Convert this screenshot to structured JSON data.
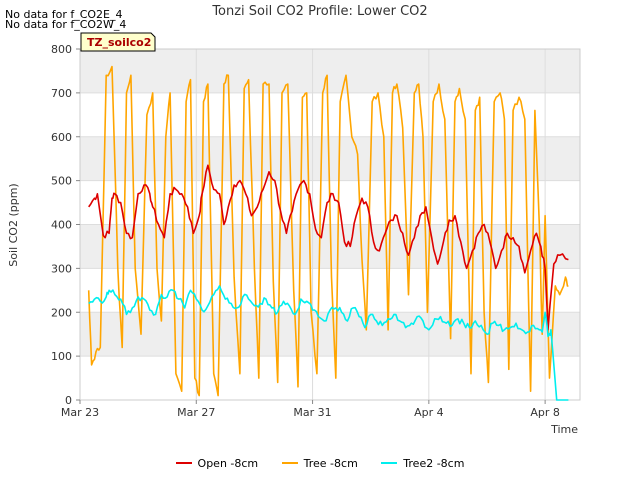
{
  "chart_data": {
    "type": "line",
    "title": "Tonzi Soil CO2 Profile: Lower CO2",
    "xlabel": "Time",
    "ylabel": "Soil CO2 (ppm)",
    "ylim": [
      0,
      800
    ],
    "yticks": [
      0,
      100,
      200,
      300,
      400,
      500,
      600,
      700,
      800
    ],
    "xlim_days": [
      0,
      17.2
    ],
    "xticks": [
      {
        "label": "Mar 23",
        "day": 0
      },
      {
        "label": "Mar 27",
        "day": 4
      },
      {
        "label": "Mar 31",
        "day": 8
      },
      {
        "label": "Apr 4",
        "day": 12
      },
      {
        "label": "Apr 8",
        "day": 16
      }
    ],
    "annotation_label": "TZ_soilco2",
    "messages": [
      "No data for f_CO2E_4",
      "No data for f_CO2W_4"
    ],
    "grid": true,
    "banded_background": true,
    "series": [
      {
        "name": "Open -8cm",
        "color": "#dd0000",
        "x": [
          0.3,
          0.5,
          0.6,
          0.8,
          1.0,
          1.1,
          1.2,
          1.4,
          1.6,
          1.8,
          2.0,
          2.2,
          2.4,
          2.5,
          2.7,
          2.9,
          3.1,
          3.3,
          3.5,
          3.7,
          3.9,
          4.1,
          4.2,
          4.4,
          4.6,
          4.8,
          4.95,
          5.1,
          5.3,
          5.5,
          5.7,
          5.9,
          6.1,
          6.3,
          6.5,
          6.7,
          6.9,
          7.1,
          7.3,
          7.5,
          7.7,
          7.9,
          8.1,
          8.3,
          8.5,
          8.7,
          8.9,
          9.1,
          9.3,
          9.5,
          9.7,
          9.9,
          10.1,
          10.3,
          10.5,
          10.7,
          10.9,
          11.1,
          11.3,
          11.5,
          11.7,
          11.9,
          12.1,
          12.3,
          12.5,
          12.7,
          12.9,
          13.1,
          13.3,
          13.5,
          13.7,
          13.9,
          14.1,
          14.3,
          14.5,
          14.7,
          14.9,
          15.1,
          15.3,
          15.5,
          15.7,
          15.85,
          16.0,
          16.1,
          16.3,
          16.5,
          16.8
        ],
        "y": [
          440,
          460,
          470,
          375,
          380,
          460,
          470,
          450,
          380,
          370,
          470,
          490,
          470,
          440,
          400,
          370,
          470,
          480,
          470,
          440,
          380,
          420,
          470,
          535,
          480,
          470,
          400,
          440,
          490,
          500,
          470,
          420,
          440,
          480,
          520,
          500,
          430,
          380,
          430,
          480,
          500,
          470,
          390,
          370,
          450,
          470,
          450,
          360,
          350,
          420,
          460,
          440,
          360,
          340,
          380,
          410,
          420,
          380,
          330,
          370,
          420,
          440,
          370,
          310,
          360,
          410,
          420,
          360,
          300,
          340,
          380,
          400,
          360,
          300,
          340,
          380,
          370,
          350,
          290,
          340,
          380,
          350,
          300,
          160,
          310,
          330,
          320
        ],
        "band": 0
      },
      {
        "name": "Tree -8cm",
        "color": "#ffa500",
        "x": [
          0.3,
          0.4,
          0.55,
          0.7,
          0.9,
          1.1,
          1.3,
          1.45,
          1.6,
          1.75,
          1.9,
          2.1,
          2.3,
          2.5,
          2.65,
          2.8,
          2.95,
          3.1,
          3.3,
          3.5,
          3.65,
          3.8,
          3.95,
          4.1,
          4.25,
          4.4,
          4.6,
          4.75,
          4.95,
          5.1,
          5.3,
          5.5,
          5.65,
          5.8,
          6.0,
          6.15,
          6.3,
          6.5,
          6.65,
          6.8,
          6.95,
          7.15,
          7.35,
          7.5,
          7.65,
          7.8,
          7.95,
          8.15,
          8.35,
          8.5,
          8.65,
          8.8,
          8.95,
          9.15,
          9.35,
          9.55,
          9.7,
          9.85,
          10.05,
          10.25,
          10.45,
          10.6,
          10.75,
          10.9,
          11.1,
          11.3,
          11.5,
          11.65,
          11.8,
          11.95,
          12.15,
          12.35,
          12.55,
          12.75,
          12.9,
          13.05,
          13.25,
          13.45,
          13.6,
          13.75,
          13.9,
          14.05,
          14.25,
          14.45,
          14.6,
          14.75,
          14.9,
          15.1,
          15.3,
          15.5,
          15.65,
          15.8,
          15.9,
          16.0,
          16.15,
          16.35,
          16.5,
          16.7,
          16.8
        ],
        "y": [
          250,
          80,
          110,
          120,
          740,
          760,
          300,
          120,
          700,
          740,
          300,
          150,
          650,
          700,
          300,
          180,
          600,
          700,
          60,
          20,
          680,
          730,
          50,
          10,
          680,
          720,
          60,
          10,
          720,
          740,
          280,
          60,
          710,
          730,
          300,
          50,
          720,
          720,
          270,
          40,
          700,
          720,
          250,
          30,
          690,
          700,
          200,
          60,
          700,
          740,
          280,
          50,
          680,
          740,
          600,
          560,
          320,
          160,
          680,
          700,
          600,
          160,
          700,
          720,
          620,
          240,
          700,
          720,
          600,
          200,
          680,
          720,
          640,
          140,
          680,
          710,
          640,
          60,
          660,
          690,
          200,
          40,
          680,
          700,
          640,
          70,
          660,
          690,
          640,
          20,
          660,
          400,
          150,
          420,
          50,
          260,
          240,
          280,
          260
        ],
        "band": 0
      },
      {
        "name": "Tree2 -8cm",
        "color": "#00eeee",
        "x": [
          0.3,
          0.5,
          0.7,
          0.9,
          1.0,
          1.2,
          1.4,
          1.6,
          1.8,
          2.0,
          2.2,
          2.4,
          2.6,
          2.8,
          3.0,
          3.2,
          3.4,
          3.6,
          3.8,
          4.0,
          4.2,
          4.4,
          4.6,
          4.8,
          5.0,
          5.2,
          5.4,
          5.6,
          5.8,
          6.0,
          6.2,
          6.4,
          6.6,
          6.8,
          7.0,
          7.2,
          7.4,
          7.6,
          7.8,
          8.0,
          8.2,
          8.4,
          8.6,
          8.8,
          9.0,
          9.2,
          9.4,
          9.6,
          9.8,
          10.0,
          10.2,
          10.4,
          10.6,
          10.8,
          11.0,
          11.2,
          11.4,
          11.6,
          11.8,
          12.0,
          12.2,
          12.4,
          12.6,
          12.8,
          13.0,
          13.2,
          13.4,
          13.6,
          13.8,
          14.0,
          14.2,
          14.4,
          14.6,
          14.8,
          15.0,
          15.2,
          15.4,
          15.6,
          15.8,
          15.9,
          16.0,
          16.1,
          16.2,
          16.4,
          16.6,
          16.8
        ],
        "y": [
          220,
          230,
          225,
          235,
          250,
          240,
          230,
          195,
          210,
          235,
          230,
          205,
          195,
          240,
          235,
          250,
          230,
          210,
          250,
          230,
          205,
          215,
          240,
          260,
          230,
          220,
          210,
          235,
          230,
          215,
          220,
          230,
          210,
          200,
          225,
          215,
          195,
          230,
          225,
          205,
          190,
          180,
          205,
          210,
          200,
          180,
          210,
          190,
          165,
          195,
          180,
          170,
          185,
          195,
          180,
          165,
          175,
          190,
          180,
          160,
          185,
          190,
          175,
          170,
          185,
          175,
          165,
          180,
          170,
          150,
          175,
          170,
          160,
          165,
          175,
          160,
          155,
          170,
          160,
          155,
          200,
          145,
          160,
          0,
          0,
          0
        ],
        "band": 0
      }
    ]
  }
}
